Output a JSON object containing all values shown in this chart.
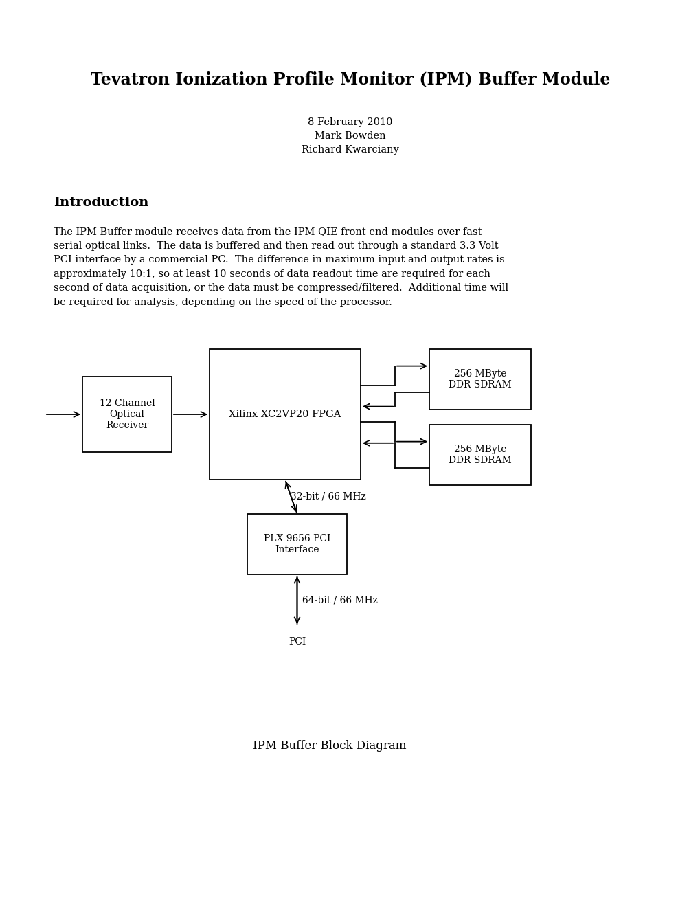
{
  "title": "Tevatron Ionization Profile Monitor (IPM) Buffer Module",
  "date_line": "8 February 2010",
  "author1": "Mark Bowden",
  "author2": "Richard Kwarciany",
  "section_title": "Introduction",
  "body_text": "The IPM Buffer module receives data from the IPM QIE front end modules over fast\nserial optical links.  The data is buffered and then read out through a standard 3.3 Volt\nPCI interface by a commercial PC.  The difference in maximum input and output rates is\napproximately 10:1, so at least 10 seconds of data readout time are required for each\nsecond of data acquisition, or the data must be compressed/filtered.  Additional time will\nbe required for analysis, depending on the speed of the processor.",
  "caption": "IPM Buffer Block Diagram",
  "background_color": "#ffffff",
  "text_color": "#000000",
  "box_edgecolor": "#000000",
  "box_facecolor": "#ffffff"
}
